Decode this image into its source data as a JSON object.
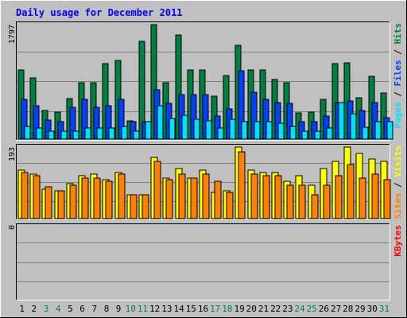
{
  "chart_data": [
    {
      "type": "bar",
      "title": "Daily usage for December 2011",
      "categories": [
        "1",
        "2",
        "3",
        "4",
        "5",
        "6",
        "7",
        "8",
        "9",
        "10",
        "11",
        "12",
        "13",
        "14",
        "15",
        "16",
        "17",
        "18",
        "19",
        "20",
        "21",
        "22",
        "23",
        "24",
        "25",
        "26",
        "27",
        "28",
        "29",
        "30",
        "31"
      ],
      "weekend_days": [
        "3",
        "4",
        "10",
        "11",
        "17",
        "18",
        "24",
        "25",
        "31"
      ],
      "ylim": [
        0,
        1797
      ],
      "max_label": "1797",
      "series": [
        {
          "name": "Hits",
          "color": "#008040",
          "values": [
            1080,
            960,
            450,
            420,
            640,
            890,
            880,
            1180,
            1240,
            290,
            1540,
            1797,
            880,
            1630,
            1080,
            1080,
            670,
            1000,
            1470,
            1080,
            1080,
            940,
            890,
            410,
            430,
            630,
            1180,
            1200,
            650,
            990,
            720
          ]
        },
        {
          "name": "Files",
          "color": "#0040ff",
          "values": [
            620,
            520,
            300,
            270,
            500,
            620,
            500,
            530,
            620,
            270,
            280,
            770,
            560,
            700,
            700,
            700,
            360,
            480,
            1070,
            740,
            630,
            580,
            560,
            280,
            280,
            360,
            580,
            600,
            450,
            580,
            340
          ]
        },
        {
          "name": "Pages",
          "color": "#00e0ff",
          "values": [
            200,
            170,
            120,
            120,
            130,
            170,
            170,
            170,
            200,
            120,
            280,
            520,
            330,
            370,
            310,
            290,
            170,
            310,
            280,
            270,
            270,
            250,
            200,
            120,
            130,
            170,
            580,
            400,
            190,
            270,
            280
          ]
        }
      ]
    },
    {
      "type": "bar",
      "title": "",
      "categories": [
        "1",
        "2",
        "3",
        "4",
        "5",
        "6",
        "7",
        "8",
        "9",
        "10",
        "11",
        "12",
        "13",
        "14",
        "15",
        "16",
        "17",
        "18",
        "19",
        "20",
        "21",
        "22",
        "23",
        "24",
        "25",
        "26",
        "27",
        "28",
        "29",
        "30",
        "31"
      ],
      "ylim": [
        0,
        193
      ],
      "max_label": "193",
      "series": [
        {
          "name": "Visits",
          "color": "#ffff00",
          "values": [
            130,
            120,
            80,
            75,
            95,
            115,
            120,
            105,
            125,
            65,
            65,
            165,
            110,
            135,
            110,
            130,
            70,
            75,
            193,
            130,
            125,
            125,
            100,
            115,
            90,
            135,
            155,
            193,
            175,
            160,
            155
          ]
        },
        {
          "name": "Sites",
          "color": "#ff8000",
          "values": [
            125,
            115,
            85,
            75,
            90,
            110,
            110,
            100,
            120,
            65,
            65,
            155,
            105,
            120,
            110,
            120,
            100,
            70,
            180,
            120,
            115,
            115,
            90,
            90,
            65,
            90,
            115,
            145,
            110,
            120,
            105
          ]
        }
      ]
    },
    {
      "type": "bar",
      "title": "",
      "categories": [
        "1",
        "2",
        "3",
        "4",
        "5",
        "6",
        "7",
        "8",
        "9",
        "10",
        "11",
        "12",
        "13",
        "14",
        "15",
        "16",
        "17",
        "18",
        "19",
        "20",
        "21",
        "22",
        "23",
        "24",
        "25",
        "26",
        "27",
        "28",
        "29",
        "30",
        "31"
      ],
      "ylim": [
        0,
        1
      ],
      "max_label": "0",
      "series": [
        {
          "name": "KBytes",
          "color": "#ff0000",
          "values": [
            0,
            0,
            0,
            0,
            0,
            0,
            0,
            0,
            0,
            0,
            0,
            0,
            0,
            0,
            0,
            0,
            0,
            0,
            0,
            0,
            0,
            0,
            0,
            0,
            0,
            0,
            0,
            0,
            0,
            0,
            0
          ]
        }
      ]
    }
  ],
  "colors": {
    "background": "#c0c0c0",
    "title": "#0000ff",
    "weekday_label": "#000000",
    "weekend_label": "#00805c",
    "separator": "#ffffff"
  }
}
